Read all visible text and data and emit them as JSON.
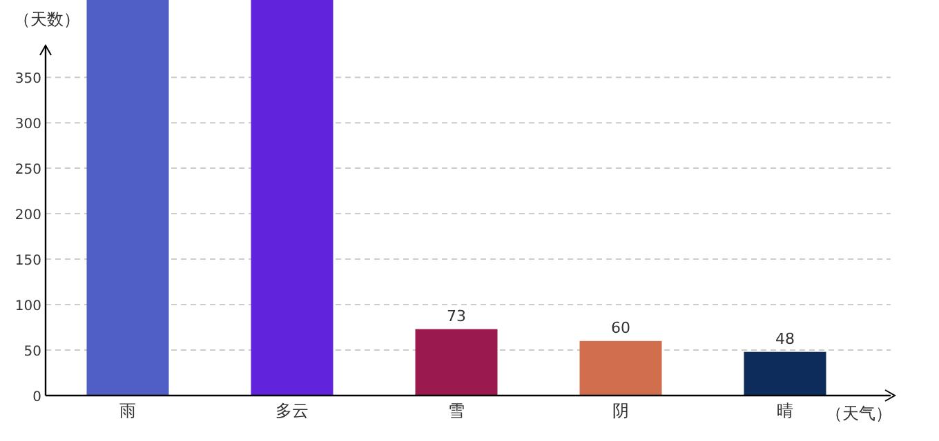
{
  "chart_data": {
    "type": "bar",
    "xlabel": "（天气）",
    "ylabel": "（天数）",
    "categories": [
      "雨",
      "多云",
      "雪",
      "阴",
      "晴"
    ],
    "values": [
      435,
      435,
      73,
      60,
      48
    ],
    "colors": [
      "#4f5fc5",
      "#6123dc",
      "#9a1a4e",
      "#d06e4e",
      "#0d2c5c"
    ],
    "value_labels": [
      null,
      null,
      "73",
      "60",
      "48"
    ],
    "ylim": [
      0,
      435
    ],
    "yticks": [
      0,
      50,
      100,
      150,
      200,
      250,
      300,
      350
    ],
    "grid": "y"
  }
}
